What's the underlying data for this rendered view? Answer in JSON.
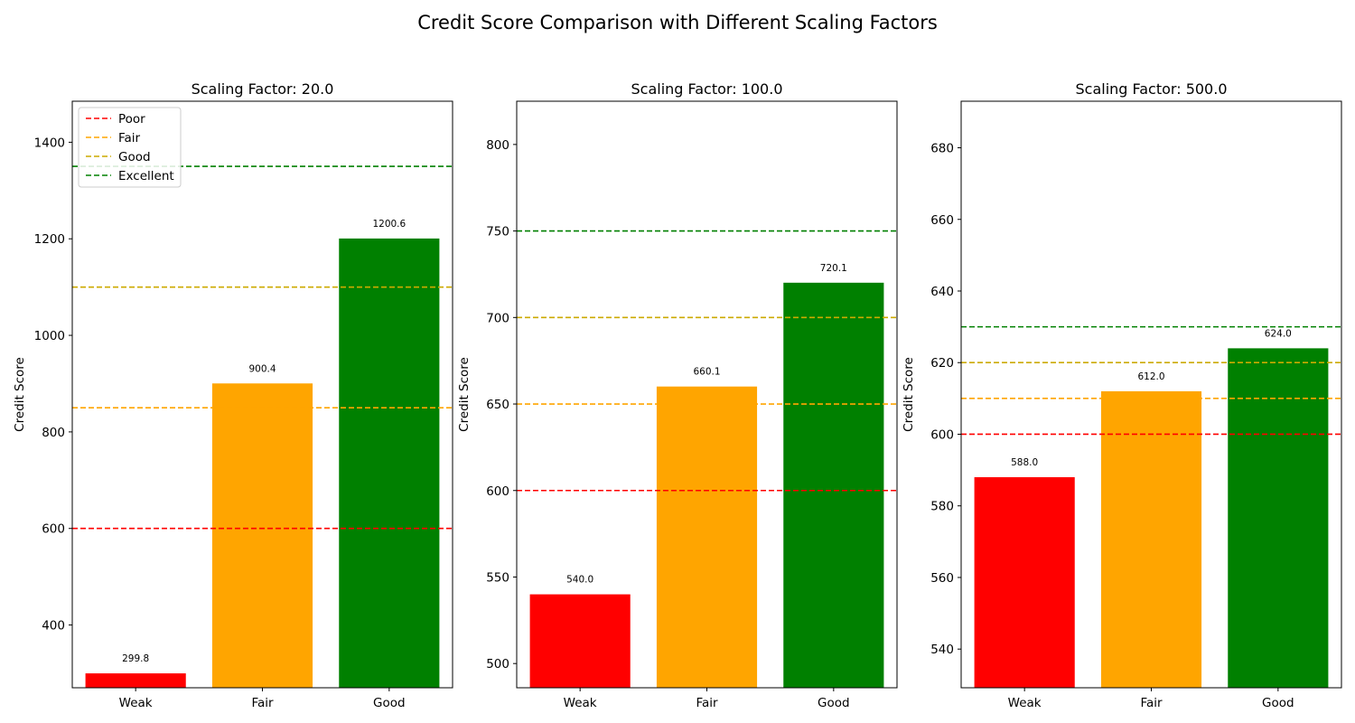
{
  "chart_data": {
    "title": "Credit Score Comparison with Different Scaling Factors",
    "colors": {
      "Weak": "#ff0000",
      "Fair": "#ffa500",
      "Good": "#008000",
      "Poor_line": "#ff0000",
      "Fair_line": "#ffa500",
      "Good_line": "#ccaa00",
      "Excellent_line": "#008000"
    },
    "legend": {
      "entries": [
        "Poor",
        "Fair",
        "Good",
        "Excellent"
      ],
      "placement": "upper-left of first panel"
    },
    "subplots": [
      {
        "type": "bar",
        "title": "Scaling Factor: 20.0",
        "xlabel": "",
        "ylabel": "Credit Score",
        "categories": [
          "Weak",
          "Fair",
          "Good"
        ],
        "values": [
          299.8,
          900.4,
          1200.6
        ],
        "bar_labels": [
          "299.8",
          "900.4",
          "1200.6"
        ],
        "ylim": [
          270,
          1485
        ],
        "yticks": [
          400,
          600,
          800,
          1000,
          1200,
          1400
        ],
        "thresholds": [
          {
            "name": "Poor",
            "value": 600
          },
          {
            "name": "Fair",
            "value": 850
          },
          {
            "name": "Good",
            "value": 1100
          },
          {
            "name": "Excellent",
            "value": 1350
          }
        ],
        "show_legend": true
      },
      {
        "type": "bar",
        "title": "Scaling Factor: 100.0",
        "xlabel": "",
        "ylabel": "Credit Score",
        "categories": [
          "Weak",
          "Fair",
          "Good"
        ],
        "values": [
          540.0,
          660.1,
          720.1
        ],
        "bar_labels": [
          "540.0",
          "660.1",
          "720.1"
        ],
        "ylim": [
          486,
          825
        ],
        "yticks": [
          500,
          550,
          600,
          650,
          700,
          750,
          800
        ],
        "thresholds": [
          {
            "name": "Poor",
            "value": 600
          },
          {
            "name": "Fair",
            "value": 650
          },
          {
            "name": "Good",
            "value": 700
          },
          {
            "name": "Excellent",
            "value": 750
          }
        ],
        "show_legend": false
      },
      {
        "type": "bar",
        "title": "Scaling Factor: 500.0",
        "xlabel": "",
        "ylabel": "Credit Score",
        "categories": [
          "Weak",
          "Fair",
          "Good"
        ],
        "values": [
          588.0,
          612.0,
          624.0
        ],
        "bar_labels": [
          "588.0",
          "612.0",
          "624.0"
        ],
        "ylim": [
          529.2,
          693
        ],
        "yticks": [
          540,
          560,
          580,
          600,
          620,
          640,
          660,
          680
        ],
        "thresholds": [
          {
            "name": "Poor",
            "value": 600
          },
          {
            "name": "Fair",
            "value": 610
          },
          {
            "name": "Good",
            "value": 620
          },
          {
            "name": "Excellent",
            "value": 630
          }
        ],
        "show_legend": false
      }
    ]
  }
}
